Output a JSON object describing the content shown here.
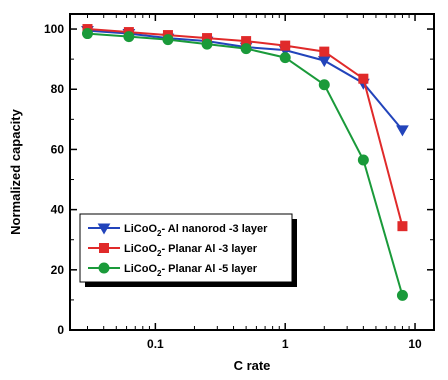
{
  "chart_data": {
    "type": "line",
    "xlabel": "C rate",
    "ylabel": "Normalized capacity",
    "xscale": "log",
    "xlim": [
      0.022,
      14
    ],
    "ylim": [
      0,
      105
    ],
    "xticks": [
      {
        "value": 0.1,
        "label": "0.1"
      },
      {
        "value": 1,
        "label": "1"
      },
      {
        "value": 10,
        "label": "10"
      }
    ],
    "yticks": [
      {
        "value": 0,
        "label": "0"
      },
      {
        "value": 20,
        "label": "20"
      },
      {
        "value": 40,
        "label": "40"
      },
      {
        "value": 60,
        "label": "60"
      },
      {
        "value": 80,
        "label": "80"
      },
      {
        "value": 100,
        "label": "100"
      }
    ],
    "grid": false,
    "legend_position": "bottom-left",
    "x": [
      0.03,
      0.0625,
      0.125,
      0.25,
      0.5,
      1,
      2,
      4,
      8
    ],
    "series": [
      {
        "name": "LiCoO2- Al nanorod -3 layer",
        "legend_parts": [
          "LiCoO",
          "2",
          "- Al nanorod -3 layer"
        ],
        "color": "#2244bb",
        "marker": "triangle-down",
        "values": [
          99.5,
          98.5,
          97,
          96,
          94,
          93,
          89.5,
          82,
          66.5
        ]
      },
      {
        "name": "LiCoO2- Planar Al -3 layer",
        "legend_parts": [
          "LiCoO",
          "2",
          "- Planar Al -3 layer"
        ],
        "color": "#e02a2a",
        "marker": "square",
        "values": [
          100,
          99,
          98,
          97,
          96,
          94.5,
          92.5,
          83.5,
          34.5
        ]
      },
      {
        "name": "LiCoO2- Planar Al -5 layer",
        "legend_parts": [
          "LiCoO",
          "2",
          "- Planar Al -5 layer"
        ],
        "color": "#1a9a3a",
        "marker": "circle",
        "values": [
          98.5,
          97.5,
          96.5,
          95,
          93.5,
          90.5,
          81.5,
          56.5,
          11.5
        ]
      }
    ]
  }
}
